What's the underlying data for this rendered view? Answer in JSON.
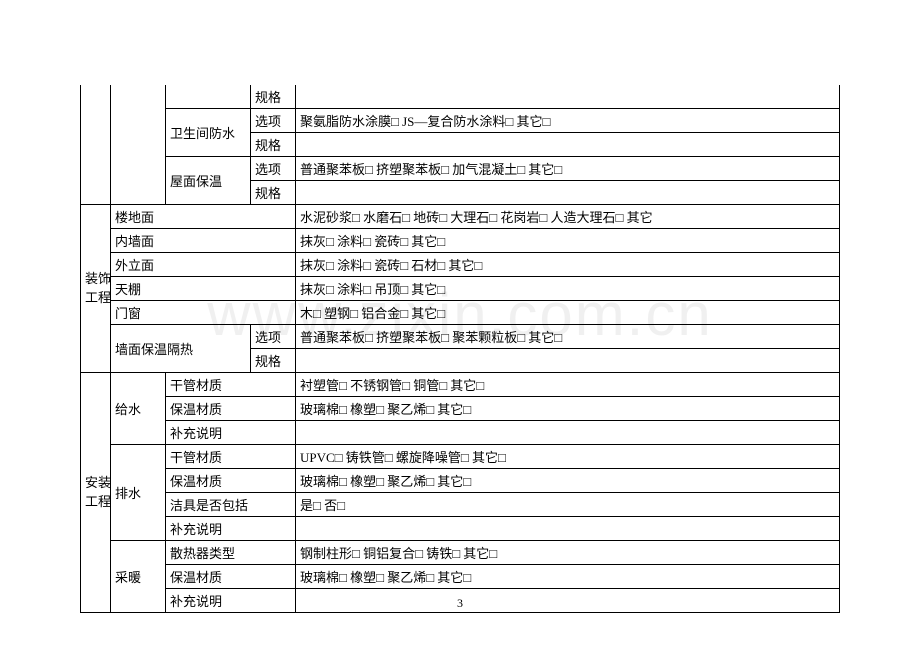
{
  "watermark": "www.zixin.com.cn",
  "page_number": "3",
  "section1_rows": [
    {
      "c2": "",
      "c3": "",
      "c4": "规格",
      "c5": ""
    },
    {
      "c2": "",
      "c3": "卫生间防水",
      "c4": "选项",
      "c5": "聚氨脂防水涂膜□    JS—复合防水涂料□    其它□"
    },
    {
      "c2": "",
      "c3": "",
      "c4": "规格",
      "c5": ""
    },
    {
      "c2": "",
      "c3": "屋面保温",
      "c4": "选项",
      "c5": "普通聚苯板□    挤塑聚苯板□    加气混凝土□    其它□"
    },
    {
      "c2": "",
      "c3": "",
      "c4": "规格",
      "c5": ""
    }
  ],
  "section2": {
    "header": "装饰工程",
    "rows": [
      {
        "label": "楼地面",
        "c5": "水泥砂浆□    水磨石□    地砖□    大理石□    花岗岩□    人造大理石□    其它"
      },
      {
        "label": "内墙面",
        "c5": "抹灰□    涂料□    瓷砖□    其它□"
      },
      {
        "label": "外立面",
        "c5": "抹灰□    涂料□    瓷砖□    石材□    其它□"
      },
      {
        "label": "天棚",
        "c5": "抹灰□    涂料□    吊顶□    其它□"
      },
      {
        "label": "门窗",
        "c5": "木□    塑钢□    铝合金□    其它□"
      }
    ],
    "wall_insulation": {
      "label": "墙面保温隔热",
      "opt_label": "选项",
      "opt_value": "普通聚苯板□    挤塑聚苯板□    聚苯颗粒板□    其它□",
      "spec_label": "规格",
      "spec_value": ""
    }
  },
  "section3": {
    "header": "安装工程",
    "groups": [
      {
        "label": "给水",
        "rows": [
          {
            "c3": "干管材质",
            "c5": "衬塑管□    不锈钢管□    铜管□    其它□"
          },
          {
            "c3": "保温材质",
            "c5": "玻璃棉□    橡塑□    聚乙烯□    其它□"
          },
          {
            "c3": "补充说明",
            "c5": ""
          }
        ]
      },
      {
        "label": "排水",
        "rows": [
          {
            "c3": "干管材质",
            "c5": "UPVC□    铸铁管□    螺旋降噪管□    其它□"
          },
          {
            "c3": "保温材质",
            "c5": "玻璃棉□    橡塑□    聚乙烯□    其它□"
          },
          {
            "c3": "洁具是否包括",
            "c5": "是□        否□"
          },
          {
            "c3": "补充说明",
            "c5": ""
          }
        ]
      },
      {
        "label": "采暖",
        "rows": [
          {
            "c3": "散热器类型",
            "c5": "钢制柱形□    铜铝复合□    铸铁□    其它□"
          },
          {
            "c3": "保温材质",
            "c5": "玻璃棉□    橡塑□    聚乙烯□    其它□"
          },
          {
            "c3": "补充说明",
            "c5": ""
          }
        ]
      }
    ]
  }
}
